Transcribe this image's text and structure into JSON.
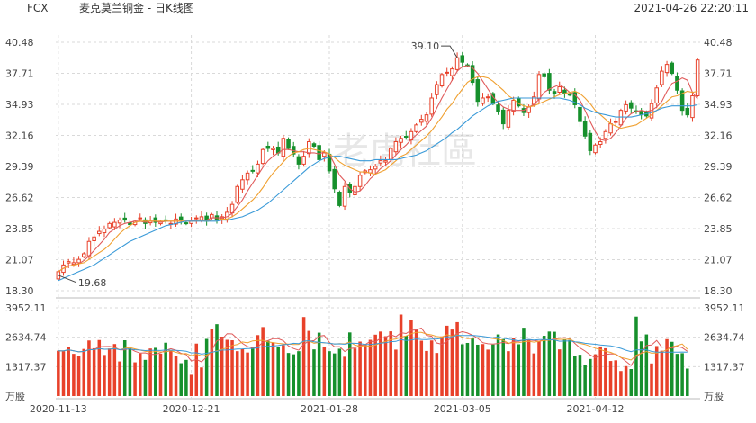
{
  "header": {
    "ticker": "FCX",
    "title": "麦克莫兰铜金 - 日K线图",
    "timestamp": "2021-04-26 22:20:11"
  },
  "watermark": {
    "text": "老虎社區"
  },
  "colors": {
    "up": "#e8412a",
    "down": "#16902c",
    "ma5": "#e05a5a",
    "ma10": "#f0a030",
    "ma20": "#3a9ad8",
    "grid": "#d9d9d9",
    "text": "#444444"
  },
  "chart_data": [
    {
      "type": "candlestick",
      "title": "麦克莫兰铜金 - 日K线图",
      "ylim": [
        18.3,
        40.48
      ],
      "y_ticks": [
        "40.48",
        "37.71",
        "34.93",
        "32.16",
        "29.39",
        "26.62",
        "23.85",
        "21.07",
        "18.30"
      ],
      "x_ticks": [
        "2020-11-13",
        "2020-12-21",
        "2021-01-28",
        "2021-03-05",
        "2021-04-12"
      ],
      "annotations": [
        {
          "text": "39.10",
          "x_index": 78,
          "value": 39.1
        },
        {
          "text": "19.68",
          "x_index": 0,
          "value": 19.68
        }
      ],
      "series": [
        {
          "field": "close",
          "values": [
            20.0,
            20.6,
            20.9,
            20.8,
            21.1,
            21.6,
            22.7,
            23.1,
            23.6,
            23.8,
            24.3,
            24.4,
            24.6,
            24.6,
            24.2,
            24.5,
            24.8,
            24.3,
            24.5,
            24.4,
            24.5,
            24.6,
            24.3,
            24.7,
            24.6,
            24.3,
            24.5,
            24.8,
            24.9,
            24.5,
            25.1,
            24.6,
            24.9,
            25.3,
            26.0,
            27.6,
            28.2,
            28.8,
            29.0,
            29.6,
            30.9,
            31.0,
            31.0,
            30.6,
            31.9,
            31.0,
            30.5,
            29.6,
            30.3,
            31.6,
            31.2,
            30.0,
            30.6,
            29.0,
            27.4,
            25.9,
            27.6,
            27.1,
            27.6,
            28.6,
            29.0,
            29.1,
            29.4,
            29.9,
            29.9,
            31.0,
            31.6,
            31.9,
            32.0,
            32.5,
            33.1,
            33.6,
            34.0,
            35.5,
            36.7,
            37.6,
            37.8,
            38.1,
            39.1,
            38.7,
            38.4,
            36.9,
            35.2,
            35.5,
            35.6,
            35.0,
            34.3,
            33.2,
            34.4,
            35.3,
            34.8,
            34.2,
            34.7,
            35.6,
            37.6,
            37.4,
            36.2,
            35.9,
            36.5,
            35.9,
            35.8,
            34.9,
            33.4,
            32.1,
            30.8,
            31.3,
            31.6,
            32.5,
            33.2,
            33.4,
            34.4,
            34.9,
            34.6,
            34.3,
            34.0,
            33.9,
            35.0,
            36.4,
            37.9,
            38.5,
            37.7,
            36.2,
            34.4,
            34.0,
            35.7,
            38.9
          ]
        },
        {
          "field": "volume",
          "unit": "万股",
          "values": [
            2030,
            2010,
            2180,
            1890,
            1790,
            2110,
            2490,
            2140,
            2510,
            1840,
            2130,
            2330,
            1550,
            2500,
            2140,
            1510,
            1910,
            1620,
            2130,
            2160,
            1900,
            2390,
            2020,
            1800,
            1470,
            1620,
            950,
            2350,
            1280,
            2560,
            3020,
            3220,
            2660,
            2520,
            2500,
            2010,
            2110,
            1950,
            2190,
            2730,
            3090,
            2470,
            2380,
            2180,
            2280,
            1930,
            1870,
            2010,
            3540,
            2920,
            2090,
            2840,
            2180,
            2010,
            1910,
            2120,
            1760,
            2850,
            2130,
            2440,
            2330,
            2520,
            2750,
            2890,
            2680,
            2900,
            2080,
            3650,
            2700,
            3410,
            2980,
            2480,
            2020,
            2490,
            1930,
            2670,
            3150,
            2980,
            3310,
            2320,
            2380,
            2620,
            2300,
            2330,
            2080,
            2310,
            2760,
            2550,
            2010,
            2620,
            2320,
            3060,
            2530,
            1910,
            2450,
            2700,
            2890,
            2880,
            2090,
            2520,
            2510,
            1790,
            1850,
            1410,
            1660,
            1870,
            2220,
            2140,
            1570,
            1600,
            1120,
            1340,
            1210,
            3560,
            2450,
            2760,
            1460,
            2240,
            2030,
            2550,
            2430,
            1890,
            1920,
            1230
          ]
        }
      ],
      "lines": [
        {
          "name": "MA5",
          "values": [
            20.0,
            20.3,
            20.5,
            20.6,
            20.7,
            21.0,
            21.4,
            21.9,
            22.4,
            22.9,
            23.5,
            23.8,
            24.1,
            24.3,
            24.4,
            24.5,
            24.5,
            24.4,
            24.5,
            24.5,
            24.4,
            24.5,
            24.5,
            24.5,
            24.5,
            24.5,
            24.5,
            24.6,
            24.6,
            24.6,
            24.8,
            24.8,
            24.8,
            24.9,
            25.2,
            25.8,
            26.4,
            27.2,
            27.9,
            28.6,
            29.3,
            29.9,
            30.3,
            30.6,
            30.9,
            30.9,
            30.8,
            30.7,
            30.7,
            30.6,
            30.6,
            30.5,
            30.7,
            30.5,
            29.6,
            28.6,
            28.1,
            27.4,
            27.1,
            27.2,
            27.7,
            28.3,
            28.7,
            29.2,
            29.5,
            29.9,
            30.4,
            30.9,
            31.3,
            31.8,
            32.2,
            32.6,
            33.0,
            33.7,
            34.6,
            35.5,
            36.3,
            37.1,
            37.9,
            38.3,
            38.4,
            38.2,
            37.7,
            37.0,
            36.3,
            35.6,
            35.1,
            34.7,
            34.5,
            34.4,
            34.4,
            34.4,
            34.7,
            34.9,
            35.4,
            36.0,
            36.3,
            36.5,
            36.7,
            36.4,
            36.0,
            35.8,
            35.3,
            34.4,
            33.4,
            32.5,
            31.8,
            31.7,
            31.9,
            32.4,
            33.0,
            33.7,
            34.1,
            34.3,
            34.4,
            34.3,
            34.4,
            34.7,
            35.2,
            36.1,
            36.8,
            37.0,
            37.3,
            37.1,
            36.0,
            35.4
          ]
        },
        {
          "name": "MA10",
          "values": [
            20.0,
            20.3,
            20.5,
            20.6,
            20.7,
            20.8,
            21.1,
            21.4,
            21.7,
            22.0,
            22.4,
            22.9,
            23.4,
            23.8,
            24.1,
            24.4,
            24.5,
            24.5,
            24.5,
            24.5,
            24.5,
            24.5,
            24.5,
            24.5,
            24.5,
            24.5,
            24.5,
            24.5,
            24.6,
            24.5,
            24.6,
            24.6,
            24.7,
            24.7,
            24.9,
            25.2,
            25.6,
            26.0,
            26.4,
            26.9,
            27.5,
            28.2,
            28.8,
            29.3,
            29.8,
            30.3,
            30.6,
            30.7,
            30.9,
            31.0,
            30.9,
            30.8,
            30.7,
            30.5,
            30.2,
            29.8,
            29.5,
            29.3,
            29.1,
            28.9,
            28.9,
            28.8,
            28.7,
            28.9,
            29.1,
            29.5,
            29.9,
            30.3,
            30.5,
            30.9,
            31.3,
            31.7,
            32.1,
            32.6,
            33.2,
            33.8,
            34.5,
            35.0,
            35.7,
            36.3,
            36.9,
            37.2,
            37.4,
            37.4,
            37.3,
            37.0,
            36.6,
            36.2,
            35.7,
            35.4,
            35.0,
            34.8,
            34.7,
            34.8,
            35.0,
            35.2,
            35.4,
            35.6,
            35.8,
            35.9,
            36.0,
            36.1,
            35.9,
            35.5,
            35.0,
            34.4,
            34.0,
            33.6,
            33.2,
            33.0,
            32.8,
            32.9,
            33.0,
            33.1,
            33.4,
            33.7,
            34.0,
            34.4,
            34.8,
            35.2,
            35.6,
            35.7,
            35.9,
            36.1,
            36.0,
            36.1
          ]
        },
        {
          "name": "MA20",
          "values": [
            19.2,
            19.4,
            19.6,
            19.8,
            20.0,
            20.2,
            20.4,
            20.6,
            20.9,
            21.2,
            21.5,
            21.8,
            22.1,
            22.4,
            22.7,
            22.9,
            23.1,
            23.3,
            23.5,
            23.7,
            23.9,
            24.1,
            24.2,
            24.3,
            24.4,
            24.5,
            24.5,
            24.5,
            24.5,
            24.5,
            24.5,
            24.5,
            24.6,
            24.6,
            24.7,
            24.8,
            24.9,
            25.1,
            25.3,
            25.5,
            25.8,
            26.1,
            26.5,
            26.9,
            27.3,
            27.7,
            28.1,
            28.5,
            28.9,
            29.3,
            29.6,
            29.9,
            30.1,
            30.2,
            30.3,
            30.3,
            30.2,
            30.1,
            30.0,
            29.9,
            29.9,
            29.9,
            30.0,
            30.0,
            30.0,
            30.0,
            30.0,
            30.1,
            30.2,
            30.3,
            30.4,
            30.6,
            30.8,
            31.1,
            31.4,
            31.7,
            32.0,
            32.4,
            32.7,
            33.1,
            33.5,
            33.9,
            34.2,
            34.5,
            34.8,
            35.0,
            35.2,
            35.3,
            35.4,
            35.5,
            35.5,
            35.5,
            35.5,
            35.5,
            35.5,
            35.5,
            35.5,
            35.5,
            35.5,
            35.4,
            35.3,
            35.1,
            34.9,
            34.6,
            34.4,
            34.2,
            34.1,
            34.0,
            33.9,
            33.8,
            33.8,
            33.8,
            33.8,
            33.9,
            34.0,
            34.1,
            34.2,
            34.4,
            34.6,
            34.7,
            34.8,
            34.8,
            34.8,
            34.8,
            34.8,
            34.9
          ]
        }
      ],
      "volume_panel": {
        "ylim": [
          0,
          3952.11
        ],
        "y_ticks": [
          "3952.11",
          "2634.74",
          "1317.37"
        ],
        "unit": "万股"
      }
    }
  ]
}
